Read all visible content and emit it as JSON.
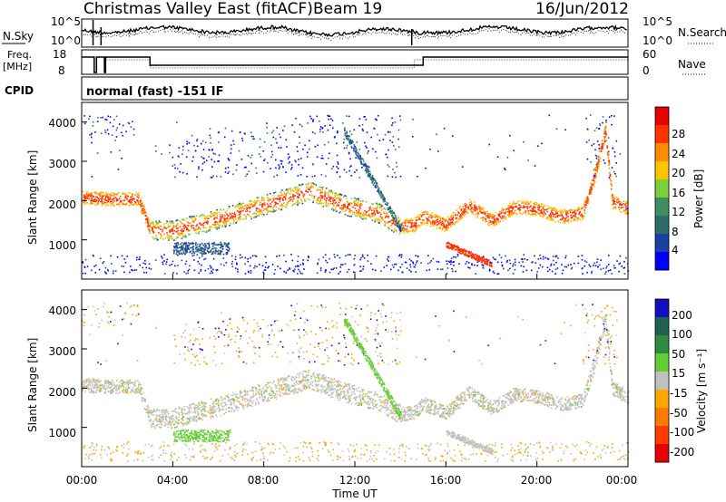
{
  "header": {
    "title": "Christmas Valley East (fitACF)",
    "beam": "Beam 19",
    "date": "16/Jun/2012"
  },
  "nsky_panel": {
    "left_label": "N.Sky",
    "left_ticks": [
      "10^5",
      "10^0"
    ],
    "right_ticks": [
      "10^5",
      "10^0"
    ],
    "right_label": "N.Search"
  },
  "freq_panel": {
    "left_label_1": "Freq.",
    "left_label_2": "[MHz]",
    "left_ticks": [
      "18",
      "8"
    ],
    "right_ticks": [
      "60",
      "0"
    ],
    "right_label": "Nave"
  },
  "cpid": {
    "label": "CPID",
    "text": "normal (fast) -151 IF"
  },
  "x_axis": {
    "ticks": [
      "00:00",
      "04:00",
      "08:00",
      "12:00",
      "16:00",
      "20:00",
      "00:00"
    ],
    "label": "Time UT"
  },
  "colors": {
    "power": [
      "#0000ff",
      "#1c3fa6",
      "#2e6b6b",
      "#3d8f5e",
      "#7ccf3c",
      "#ffc400",
      "#ff8a00",
      "#ff3300",
      "#e60000"
    ],
    "velocity": [
      "#1010c0",
      "#206050",
      "#2e8b3e",
      "#66cc33",
      "#c0c0c0",
      "#ffa500",
      "#ff7a00",
      "#ff3c00",
      "#e60000"
    ]
  },
  "chart_data": [
    {
      "type": "heatmap",
      "name": "power",
      "ylabel": "Slant Range [km]",
      "yticks": [
        "1000",
        "2000",
        "3000",
        "4000"
      ],
      "ylim": [
        0,
        4500
      ],
      "xlim_hours": [
        0,
        24
      ],
      "colorbar": {
        "label": "Power [dB]",
        "ticks": [
          "4",
          "8",
          "12",
          "16",
          "20",
          "24",
          "28"
        ]
      }
    },
    {
      "type": "heatmap",
      "name": "velocity",
      "ylabel": "Slant Range [km]",
      "yticks": [
        "1000",
        "2000",
        "3000",
        "4000"
      ],
      "ylim": [
        0,
        4500
      ],
      "xlim_hours": [
        0,
        24
      ],
      "colorbar": {
        "label": "Velocity [m s⁻¹]",
        "ticks": [
          "200",
          "100",
          "50",
          "15",
          "-15",
          "-50",
          "-100",
          "-200"
        ]
      }
    }
  ]
}
